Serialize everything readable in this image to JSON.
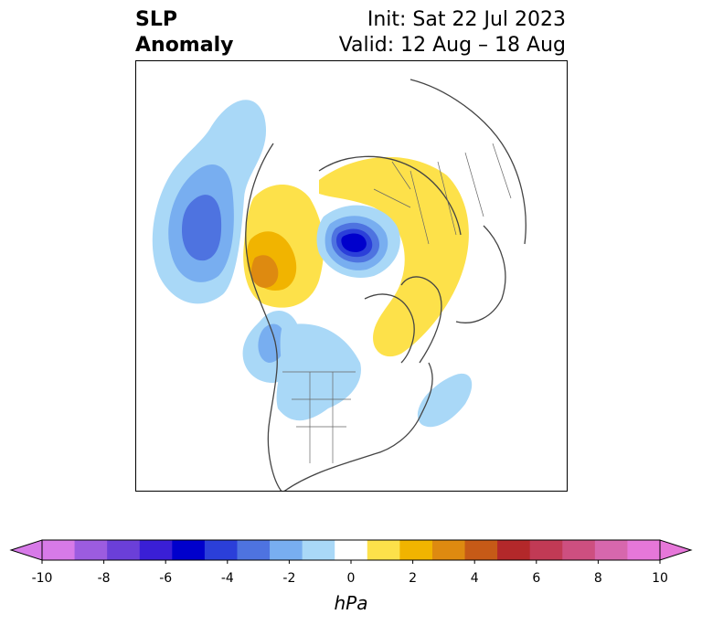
{
  "title": {
    "variable_line1": "SLP",
    "variable_line2": "Anomaly",
    "init": "Init: Sat 22 Jul 2023",
    "valid": "Valid: 12 Aug – 18 Aug"
  },
  "colorbar": {
    "unit": "hPa",
    "ticks": [
      "-10",
      "-8",
      "-6",
      "-4",
      "-2",
      "0",
      "2",
      "4",
      "6",
      "8",
      "10"
    ],
    "levels": [
      -10,
      -9,
      -8,
      -7,
      -6,
      -5,
      -4,
      -3,
      -2,
      -1,
      1,
      2,
      3,
      4,
      5,
      6,
      7,
      8,
      9,
      10
    ],
    "colors": [
      "#d77ae8",
      "#9c5ce0",
      "#6b3fd8",
      "#3a1fd6",
      "#0000cc",
      "#2b3fd9",
      "#4e73e0",
      "#78aef0",
      "#a9d8f7",
      "#ffffff",
      "#fde14a",
      "#f1b400",
      "#de8a10",
      "#c65a17",
      "#b3282a",
      "#c13a55",
      "#cd4f80",
      "#d767ad",
      "#e677d9"
    ],
    "extend": "both"
  },
  "map": {
    "projection": "north-polar-stereographic",
    "anomaly_centers": [
      {
        "sign": "negative",
        "region": "central Arctic",
        "max_level": -6
      },
      {
        "sign": "negative",
        "region": "north Pacific",
        "max_level": -4
      },
      {
        "sign": "negative",
        "region": "western Canada",
        "max_level": -3
      },
      {
        "sign": "negative",
        "region": "central North America",
        "max_level": -1
      },
      {
        "sign": "negative",
        "region": "north Atlantic",
        "max_level": -1
      },
      {
        "sign": "positive",
        "region": "Alaska / Bering",
        "max_level": 3
      },
      {
        "sign": "positive",
        "region": "Greenland",
        "max_level": 1
      },
      {
        "sign": "positive",
        "region": "Siberia",
        "max_level": 1
      }
    ]
  }
}
